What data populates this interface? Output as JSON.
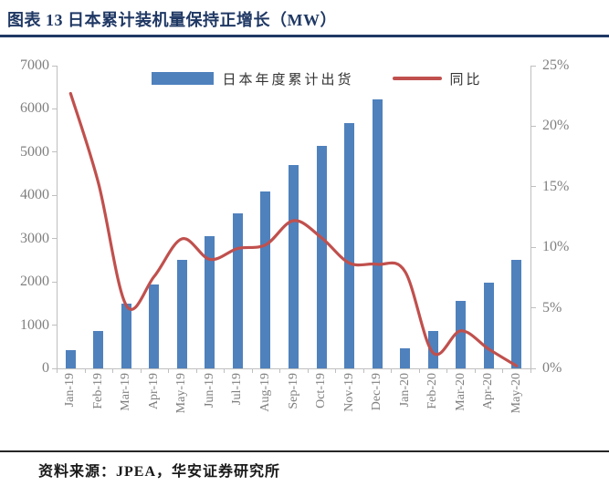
{
  "page": {
    "source_label": "资料来源：JPEA，华安证券研究所"
  },
  "chart_data": {
    "type": "bar+line",
    "title": "图表 13 日本累计装机量保持正增长（MW）",
    "categories": [
      "Jan-19",
      "Feb-19",
      "Mar-19",
      "Apr-19",
      "May-19",
      "Jun-19",
      "Jul-19",
      "Aug-19",
      "Sep-19",
      "Oct-19",
      "Nov-19",
      "Dec-19",
      "Jan-20",
      "Feb-20",
      "Mar-20",
      "Apr-20",
      "May-20"
    ],
    "series": [
      {
        "name": "日本年度累计出货",
        "type": "bar",
        "yaxis": "left",
        "color": "#4F81BD",
        "values": [
          430,
          860,
          1500,
          1950,
          2500,
          3050,
          3580,
          4100,
          4700,
          5150,
          5680,
          6220,
          460,
          870,
          1550,
          1990,
          2510
        ]
      },
      {
        "name": "同比",
        "type": "line",
        "yaxis": "right",
        "color": "#C0504D",
        "values": [
          22.7,
          15.3,
          5.2,
          7.6,
          10.7,
          9.0,
          9.9,
          10.2,
          12.2,
          10.8,
          8.7,
          8.6,
          8.0,
          1.3,
          3.1,
          1.6,
          0.2
        ]
      }
    ],
    "left_axis": {
      "min": 0,
      "max": 7000,
      "step": 1000,
      "tick_labels": [
        "0",
        "1000",
        "2000",
        "3000",
        "4000",
        "5000",
        "6000",
        "7000"
      ],
      "unit": "MW"
    },
    "right_axis": {
      "min": 0,
      "max": 25,
      "step": 5,
      "tick_labels": [
        "0%",
        "5%",
        "10%",
        "15%",
        "20%",
        "25%"
      ]
    },
    "legend_position": "top-center",
    "grid": false,
    "colors": {
      "title_navy": "#1F3864",
      "bar_blue": "#4F81BD",
      "line_red": "#C0504D",
      "axis_gray": "#BFBFBF",
      "tick_label_gray": "#7F7F7F"
    }
  }
}
